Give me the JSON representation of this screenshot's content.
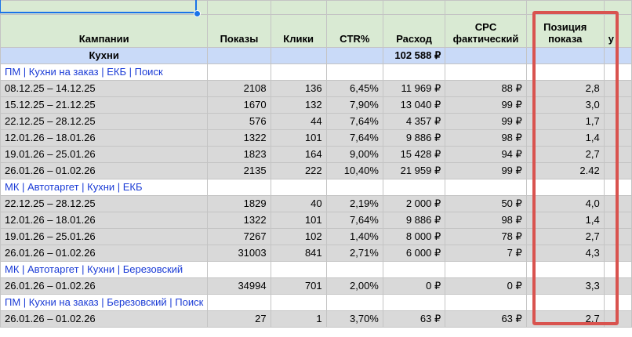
{
  "headers": {
    "campaigns": "Кампании",
    "impressions": "Показы",
    "clicks": "Клики",
    "ctr": "CTR%",
    "spend": "Расход",
    "cpc": "CPC фактический",
    "position": "Позиция показа",
    "extra": "у"
  },
  "group": {
    "name": "Кухни",
    "spend": "102 588 ₽"
  },
  "campaigns": [
    {
      "name": "ПМ | Кухни на заказ | ЕКБ | Поиск",
      "rows": [
        {
          "period": "08.12.25 – 14.12.25",
          "impressions": "2108",
          "clicks": "136",
          "ctr": "6,45%",
          "spend": "11 969 ₽",
          "cpc": "88 ₽",
          "position": "2,8"
        },
        {
          "period": "15.12.25 – 21.12.25",
          "impressions": "1670",
          "clicks": "132",
          "ctr": "7,90%",
          "spend": "13 040 ₽",
          "cpc": "99 ₽",
          "position": "3,0"
        },
        {
          "period": "22.12.25 – 28.12.25",
          "impressions": "576",
          "clicks": "44",
          "ctr": "7,64%",
          "spend": "4 357 ₽",
          "cpc": "99 ₽",
          "position": "1,7"
        },
        {
          "period": "12.01.26 – 18.01.26",
          "impressions": "1322",
          "clicks": "101",
          "ctr": "7,64%",
          "spend": "9 886 ₽",
          "cpc": "98 ₽",
          "position": "1,4"
        },
        {
          "period": "19.01.26 – 25.01.26",
          "impressions": "1823",
          "clicks": "164",
          "ctr": "9,00%",
          "spend": "15 428 ₽",
          "cpc": "94 ₽",
          "position": "2,7"
        },
        {
          "period": "26.01.26 – 01.02.26",
          "impressions": "2135",
          "clicks": "222",
          "ctr": "10,40%",
          "spend": "21 959 ₽",
          "cpc": "99 ₽",
          "position": "2.42"
        }
      ]
    },
    {
      "name": "МК | Автотаргет | Кухни | ЕКБ",
      "rows": [
        {
          "period": "22.12.25 – 28.12.25",
          "impressions": "1829",
          "clicks": "40",
          "ctr": "2,19%",
          "spend": "2 000 ₽",
          "cpc": "50 ₽",
          "position": "4,0"
        },
        {
          "period": "12.01.26 – 18.01.26",
          "impressions": "1322",
          "clicks": "101",
          "ctr": "7,64%",
          "spend": "9 886 ₽",
          "cpc": "98 ₽",
          "position": "1,4"
        },
        {
          "period": "19.01.26 – 25.01.26",
          "impressions": "7267",
          "clicks": "102",
          "ctr": "1,40%",
          "spend": "8 000 ₽",
          "cpc": "78 ₽",
          "position": "2,7"
        },
        {
          "period": "26.01.26 – 01.02.26",
          "impressions": "31003",
          "clicks": "841",
          "ctr": "2,71%",
          "spend": "6 000 ₽",
          "cpc": "7 ₽",
          "position": "4,3"
        }
      ]
    },
    {
      "name": "МК | Автотаргет | Кухни | Березовский",
      "rows": [
        {
          "period": "26.01.26 – 01.02.26",
          "impressions": "34994",
          "clicks": "701",
          "ctr": "2,00%",
          "spend": "0 ₽",
          "cpc": "0 ₽",
          "position": "3,3"
        }
      ]
    },
    {
      "name": "ПМ | Кухни на заказ | Березовский | Поиск",
      "rows": [
        {
          "period": "26.01.26 – 01.02.26",
          "impressions": "27",
          "clicks": "1",
          "ctr": "3,70%",
          "spend": "63 ₽",
          "cpc": "63 ₽",
          "position": "2,7"
        }
      ]
    }
  ],
  "colors": {
    "header_bg": "#d9ead3",
    "group_bg": "#c9daf8",
    "row_bg": "#d9d9d9",
    "campaign_text": "#1a3bd6",
    "highlight": "#d9534f",
    "selection": "#1a73e8"
  }
}
